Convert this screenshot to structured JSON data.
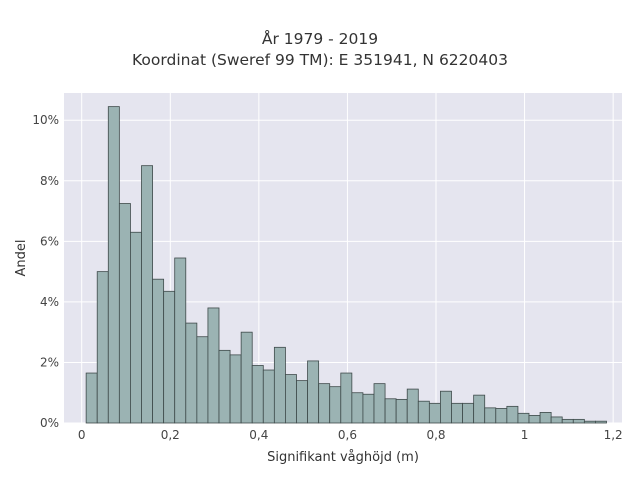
{
  "chart_data": {
    "type": "bar",
    "title": "År 1979 - 2019",
    "subtitle": "Koordinat (Sweref 99 TM): E 351941, N 6220403",
    "xlabel": "Signifikant våghöjd (m)",
    "ylabel": "Andel",
    "xlim": [
      -0.04,
      1.22
    ],
    "ylim": [
      0,
      10.9
    ],
    "x_ticks": [
      0,
      0.2,
      0.4,
      0.6,
      0.8,
      1,
      1.2
    ],
    "x_tick_labels": [
      "0",
      "0,2",
      "0,4",
      "0,6",
      "0,8",
      "1",
      "1,2"
    ],
    "y_ticks": [
      0,
      2,
      4,
      6,
      8,
      10
    ],
    "y_tick_labels": [
      "0%",
      "2%",
      "4%",
      "6%",
      "8%",
      "10%"
    ],
    "bin_width": 0.025,
    "bin_starts": [
      0.01,
      0.035,
      0.06,
      0.085,
      0.11,
      0.135,
      0.16,
      0.185,
      0.21,
      0.235,
      0.26,
      0.285,
      0.31,
      0.335,
      0.36,
      0.385,
      0.41,
      0.435,
      0.46,
      0.485,
      0.51,
      0.535,
      0.56,
      0.585,
      0.61,
      0.635,
      0.66,
      0.685,
      0.71,
      0.735,
      0.76,
      0.785,
      0.81,
      0.835,
      0.86,
      0.885,
      0.91,
      0.935,
      0.96,
      0.985,
      1.01,
      1.035,
      1.06,
      1.085,
      1.11,
      1.135,
      1.16
    ],
    "values": [
      1.65,
      5.0,
      10.45,
      7.25,
      6.3,
      8.5,
      4.75,
      4.35,
      5.45,
      3.3,
      2.85,
      3.8,
      2.4,
      2.25,
      3.0,
      1.9,
      1.75,
      2.5,
      1.6,
      1.4,
      2.05,
      1.3,
      1.2,
      1.65,
      1.0,
      0.95,
      1.3,
      0.8,
      0.78,
      1.12,
      0.72,
      0.65,
      1.05,
      0.65,
      0.65,
      0.92,
      0.5,
      0.48,
      0.55,
      0.32,
      0.25,
      0.35,
      0.2,
      0.12,
      0.12,
      0.06,
      0.06
    ],
    "colors": {
      "plot_bg": "#e5e5ef",
      "grid": "#ffffff",
      "bar_fill": "#9bb3b3",
      "bar_stroke": "#3e4a4a"
    }
  }
}
